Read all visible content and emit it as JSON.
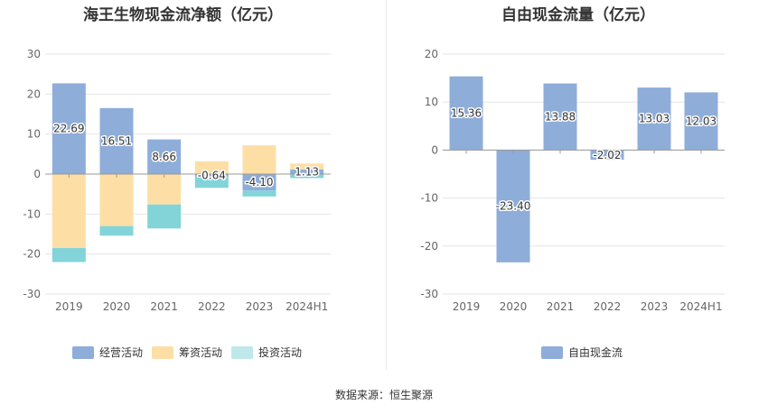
{
  "colors": {
    "operating": "#8eadd9",
    "financing": "#fddfa6",
    "investing": "#82d4d9",
    "free_cash_flow": "#8eadd9",
    "investing_legend": "#bfe8ea"
  },
  "source_text": "数据来源：恒生聚源",
  "chart_data": [
    {
      "type": "bar",
      "stacked": true,
      "title": "海王生物现金流净额（亿元）",
      "categories": [
        "2019",
        "2020",
        "2021",
        "2022",
        "2023",
        "2024H1"
      ],
      "ylim": [
        -30,
        30
      ],
      "yticks": [
        30,
        20,
        10,
        0,
        -10,
        -20,
        -30
      ],
      "grid": true,
      "legend_position": "bottom",
      "series": [
        {
          "name": "经营活动",
          "values": [
            22.69,
            16.51,
            8.66,
            -0.64,
            -4.1,
            1.13
          ]
        },
        {
          "name": "筹资活动",
          "values": [
            -18.5,
            -13.0,
            -7.6,
            3.2,
            7.2,
            1.5
          ]
        },
        {
          "name": "投资活动",
          "values": [
            -3.5,
            -2.4,
            -6.0,
            -2.8,
            -1.5,
            -1.0
          ]
        }
      ],
      "data_labels": [
        "22.69",
        "16.51",
        "8.66",
        "-0.64",
        "-4.10",
        "1.13"
      ]
    },
    {
      "type": "bar",
      "title": "自由现金流量（亿元）",
      "categories": [
        "2019",
        "2020",
        "2021",
        "2022",
        "2023",
        "2024H1"
      ],
      "ylim": [
        -30,
        20
      ],
      "yticks": [
        20,
        10,
        0,
        -10,
        -20,
        -30
      ],
      "grid": true,
      "legend_position": "bottom",
      "series": [
        {
          "name": "自由现金流",
          "values": [
            15.36,
            -23.4,
            13.88,
            -2.02,
            13.03,
            12.03
          ]
        }
      ],
      "data_labels": [
        "15.36",
        "-23.40",
        "13.88",
        "-2.02",
        "13.03",
        "12.03"
      ]
    }
  ]
}
